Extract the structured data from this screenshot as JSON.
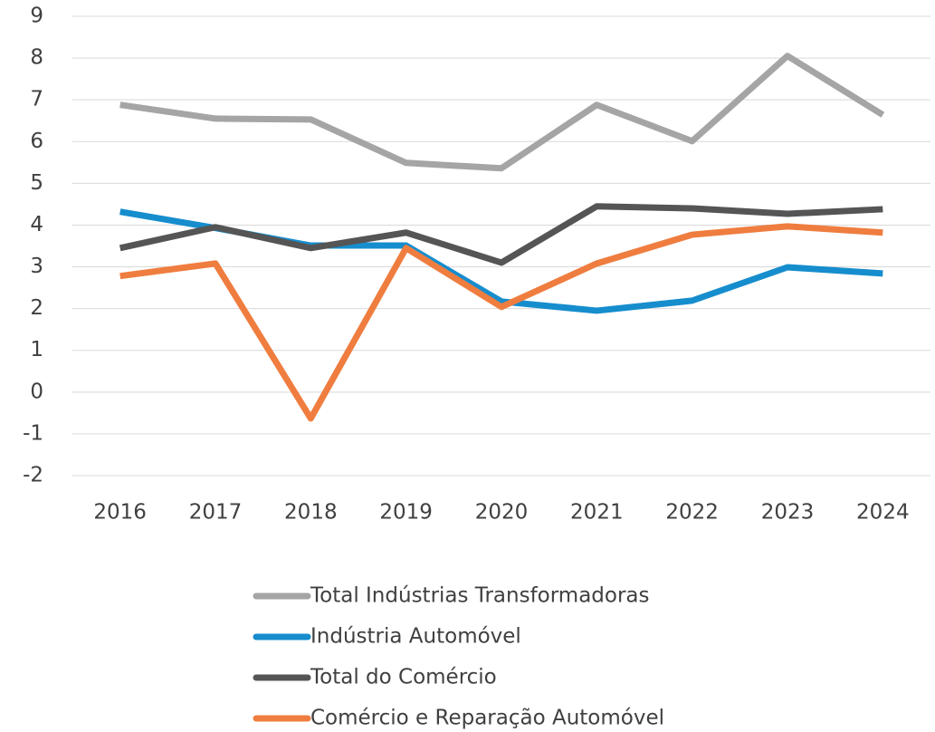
{
  "chart_data": {
    "type": "line",
    "categories": [
      "2016",
      "2017",
      "2018",
      "2019",
      "2020",
      "2021",
      "2022",
      "2023",
      "2024"
    ],
    "series": [
      {
        "name": "Total Indústrias Transformadoras",
        "color": "#a5a5a5",
        "values": [
          6.88,
          6.55,
          6.53,
          5.49,
          5.36,
          6.88,
          6.01,
          8.05,
          6.64
        ]
      },
      {
        "name": "Indústria Automóvel",
        "color": "#168dcd",
        "values": [
          4.32,
          3.93,
          3.51,
          3.51,
          2.17,
          1.95,
          2.19,
          2.99,
          2.84
        ]
      },
      {
        "name": "Total do Comércio",
        "color": "#555555",
        "values": [
          3.45,
          3.95,
          3.45,
          3.82,
          3.1,
          4.45,
          4.4,
          4.27,
          4.38
        ]
      },
      {
        "name": "Comércio e Reparação Automóvel",
        "color": "#ef7d3f",
        "values": [
          2.78,
          3.08,
          -0.63,
          3.45,
          2.04,
          3.08,
          3.77,
          3.97,
          3.82
        ]
      }
    ],
    "ylim": [
      -2,
      9
    ],
    "yticks": [
      -2,
      -1,
      0,
      1,
      2,
      3,
      4,
      5,
      6,
      7,
      8,
      9
    ],
    "grid": true,
    "legend": "bottom"
  }
}
